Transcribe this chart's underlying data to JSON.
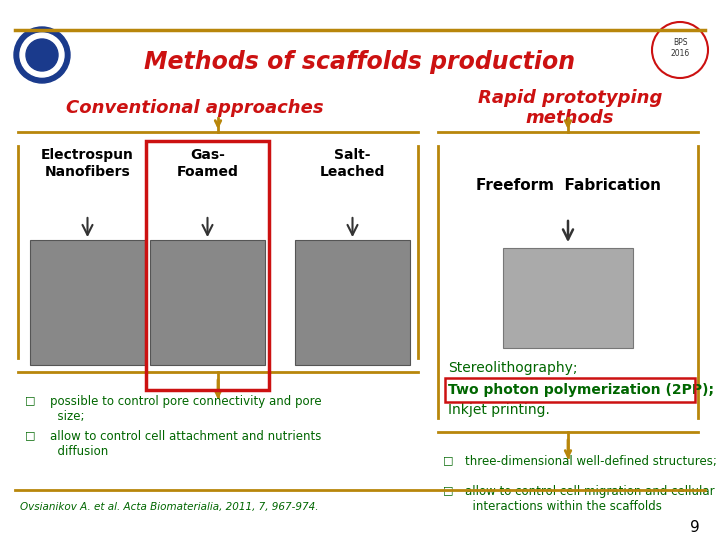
{
  "title": "Methods of scaffolds production",
  "title_color": "#cc1111",
  "title_fontsize": 17,
  "background_color": "#ffffff",
  "gold_line_color": "#b8860b",
  "left_header": "Conventional approaches",
  "right_header": "Rapid prototyping\nmethods",
  "header_color": "#cc1111",
  "header_fontsize": 13,
  "img_labels_left": [
    [
      "Electrospun",
      "Nanofibers"
    ],
    [
      "Gas-",
      "Foamed"
    ],
    [
      "Salt-",
      "Leached"
    ]
  ],
  "img_label_right": "Freeform  Fabrication",
  "label_color": "#000000",
  "label_fontsize": 10,
  "stereo_text": "Stereolithography;",
  "twop_text": "Two photon polymerization (2PP);",
  "inkjet_text": "Inkjet printing.",
  "methods_color": "#006600",
  "methods_fontsize": 10,
  "twop_box_color": "#cc1111",
  "bracket_color": "#b8860b",
  "left_bullets": [
    "possible to control pore connectivity and pore\n  size;",
    "allow to control cell attachment and nutrients\n  diffusion"
  ],
  "right_bullets": [
    "three-dimensional well-defined structures;",
    "allow to control cell migration and cellular\n  interactions within the scaffolds"
  ],
  "bullet_color": "#006600",
  "bullet_fontsize": 8.5,
  "citation": "Ovsianikov A. et al. Acta Biomaterialia, 2011, 7, 967-974.",
  "citation_fontsize": 7.5,
  "page_number": "9"
}
